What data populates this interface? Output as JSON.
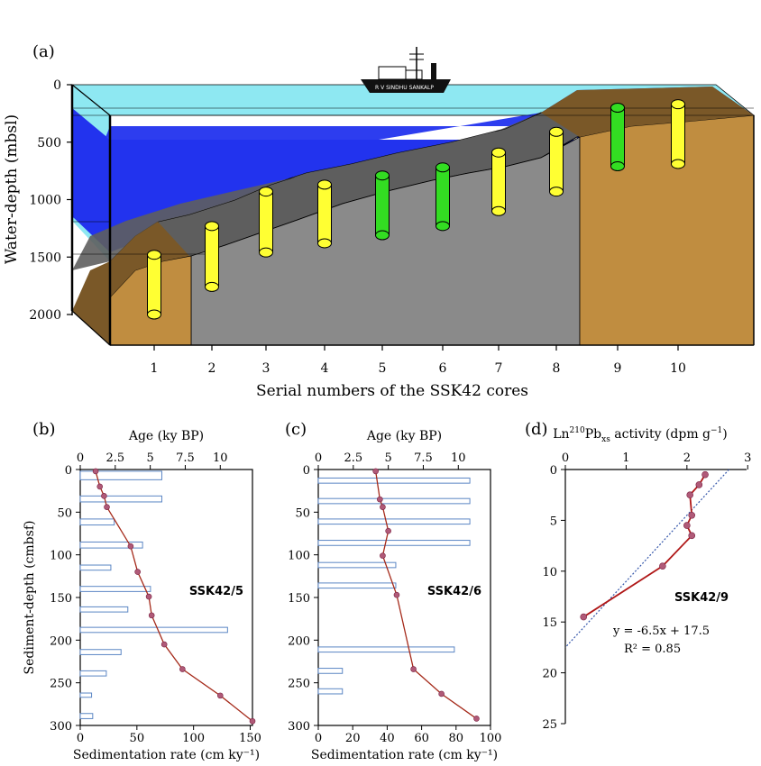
{
  "chart_data": [
    {
      "panel": "(a)",
      "type": "diagram",
      "ship_label": "R V SINDHU SANKALP",
      "ylabel": "Water-depth (mbsl)",
      "xlabel": "Serial numbers of the SSK42 cores",
      "y_ticks": [
        0,
        500,
        1000,
        1500,
        2000
      ],
      "ylim": [
        0,
        2150
      ],
      "cores": [
        {
          "label": "1",
          "top": 1480,
          "bottom": 2000,
          "color": "#ffff33"
        },
        {
          "label": "2",
          "top": 1230,
          "bottom": 1760,
          "color": "#ffff33"
        },
        {
          "label": "3",
          "top": 930,
          "bottom": 1460,
          "color": "#ffff33"
        },
        {
          "label": "4",
          "top": 870,
          "bottom": 1380,
          "color": "#ffff33"
        },
        {
          "label": "5",
          "top": 790,
          "bottom": 1310,
          "color": "#33dd22"
        },
        {
          "label": "6",
          "top": 720,
          "bottom": 1230,
          "color": "#33dd22"
        },
        {
          "label": "7",
          "top": 590,
          "bottom": 1100,
          "color": "#ffff33"
        },
        {
          "label": "8",
          "top": 410,
          "bottom": 930,
          "color": "#ffff33"
        },
        {
          "label": "9",
          "top": 200,
          "bottom": 710,
          "color": "#33dd22"
        },
        {
          "label": "10",
          "top": 170,
          "bottom": 690,
          "color": "#ffff33"
        }
      ],
      "colors": {
        "water_light": "#8ee8f2",
        "water_deep": "#2233ee",
        "sediment_top": "#5e5e5e",
        "sediment_mid": "#8a8a8a",
        "land": "#c08d40",
        "land_dark": "#7a5828"
      }
    },
    {
      "panel": "(b)",
      "type": "line+bar",
      "core_label": "SSK42/5",
      "ylabel": "Sediment-depth (cmbsf)",
      "top_xlabel": "Age (ky BP)",
      "bottom_xlabel": "Sedimentation rate (cm ky⁻¹)",
      "top_ticks": [
        "0",
        "2.5",
        "5",
        "7.5",
        "10"
      ],
      "bottom_ticks": [
        "0",
        "50",
        "100",
        "150"
      ],
      "y_ticks": [
        "0",
        "50",
        "100",
        "150",
        "200",
        "250",
        "300"
      ],
      "age_xlim": [
        0,
        12.3
      ],
      "rate_xlim": [
        0,
        152
      ],
      "ylim": [
        0,
        300
      ],
      "age_depth": {
        "age": [
          1.1,
          1.4,
          1.7,
          1.9,
          3.6,
          4.1,
          4.9,
          5.1,
          6.0,
          7.3,
          10.0,
          12.3
        ],
        "depth": [
          2,
          20,
          31,
          44,
          90,
          120,
          149,
          171,
          205,
          234,
          265,
          295
        ]
      },
      "rate_bars": [
        {
          "top": 2,
          "bottom": 12,
          "rate": 72
        },
        {
          "top": 12,
          "bottom": 20,
          "rate": 0
        },
        {
          "top": 31,
          "bottom": 38,
          "rate": 72
        },
        {
          "top": 58,
          "bottom": 65,
          "rate": 30
        },
        {
          "top": 85,
          "bottom": 92,
          "rate": 55
        },
        {
          "top": 112,
          "bottom": 118,
          "rate": 27
        },
        {
          "top": 137,
          "bottom": 143,
          "rate": 62
        },
        {
          "top": 161,
          "bottom": 167,
          "rate": 42
        },
        {
          "top": 185,
          "bottom": 191,
          "rate": 130
        },
        {
          "top": 211,
          "bottom": 217,
          "rate": 36
        },
        {
          "top": 236,
          "bottom": 242,
          "rate": 23
        },
        {
          "top": 262,
          "bottom": 267,
          "rate": 10
        },
        {
          "top": 286,
          "bottom": 292,
          "rate": 11
        }
      ]
    },
    {
      "panel": "(c)",
      "type": "line+bar",
      "core_label": "SSK42/6",
      "ylabel": "",
      "top_xlabel": "Age (ky BP)",
      "bottom_xlabel": "Sedimentation rate (cm ky⁻¹)",
      "top_ticks": [
        "0",
        "2.5",
        "5",
        "7.5",
        "10"
      ],
      "bottom_ticks": [
        "0",
        "20",
        "40",
        "60",
        "80",
        "100"
      ],
      "y_ticks": [
        "0",
        "50",
        "100",
        "150",
        "200",
        "250",
        "300"
      ],
      "age_xlim": [
        0,
        12.3
      ],
      "rate_xlim": [
        0,
        100
      ],
      "ylim": [
        0,
        300
      ],
      "age_depth": {
        "age": [
          4.1,
          4.4,
          4.6,
          5.0,
          4.6,
          5.6,
          6.8,
          8.8,
          11.3
        ],
        "depth": [
          2,
          35,
          44,
          72,
          101,
          147,
          234,
          263,
          292
        ]
      },
      "rate_bars": [
        {
          "top": 10,
          "bottom": 16,
          "rate": 88
        },
        {
          "top": 34,
          "bottom": 40,
          "rate": 88
        },
        {
          "top": 58,
          "bottom": 64,
          "rate": 88
        },
        {
          "top": 83,
          "bottom": 89,
          "rate": 88
        },
        {
          "top": 109,
          "bottom": 115,
          "rate": 45
        },
        {
          "top": 133,
          "bottom": 139,
          "rate": 45
        },
        {
          "top": 208,
          "bottom": 214,
          "rate": 79
        },
        {
          "top": 233,
          "bottom": 239,
          "rate": 14
        },
        {
          "top": 257,
          "bottom": 263,
          "rate": 14
        }
      ]
    },
    {
      "panel": "(d)",
      "type": "line",
      "core_label": "SSK42/9",
      "top_xlabel_parts": [
        "Ln",
        "210",
        "Pb",
        "xs",
        " activity  (dpm g",
        "−1",
        ")"
      ],
      "top_ticks": [
        "0",
        "1",
        "2",
        "3"
      ],
      "y_ticks": [
        "0",
        "5",
        "10",
        "15",
        "20",
        "25"
      ],
      "xlim": [
        0,
        3.1
      ],
      "ylim": [
        0,
        25
      ],
      "x": [
        2.3,
        2.2,
        2.05,
        2.08,
        2.0,
        2.08,
        1.6,
        0.3
      ],
      "y": [
        0.5,
        1.5,
        2.5,
        4.5,
        5.5,
        6.5,
        9.5,
        14.5
      ],
      "trendline": {
        "slope": -6.5,
        "intercept": 17.5
      },
      "equation": "y = -6.5x + 17.5",
      "r_squared": "R² = 0.85"
    }
  ]
}
